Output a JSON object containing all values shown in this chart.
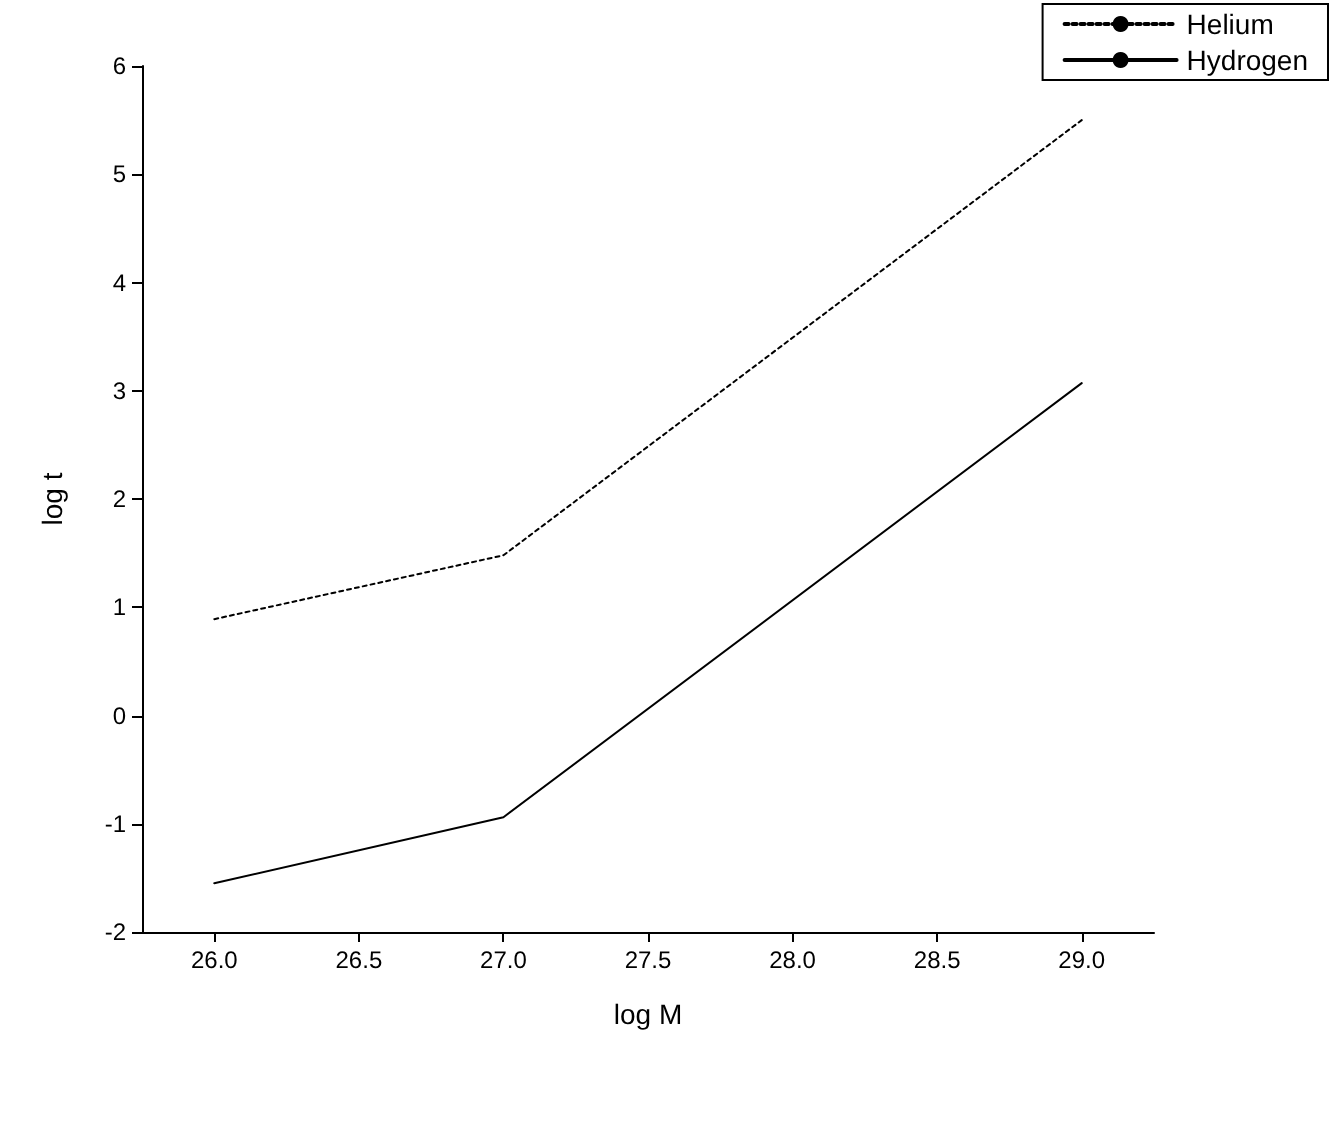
{
  "chart_data": {
    "type": "line",
    "xlabel": "log M",
    "ylabel": "log t",
    "x": [
      26,
      27,
      29
    ],
    "series": [
      {
        "name": "Helium",
        "color": "#000000",
        "line_style": "dotted",
        "values": [
          0.89,
          1.48,
          5.5
        ]
      },
      {
        "name": "Hydrogen",
        "color": "#000000",
        "line_style": "solid",
        "values": [
          -1.55,
          -0.94,
          3.07
        ]
      }
    ],
    "xlim": [
      25.75,
      29.25
    ],
    "xticks": [
      {
        "value": 26,
        "label": "26.0"
      },
      {
        "value": 26.5,
        "label": "26.5"
      },
      {
        "value": 27,
        "label": "27.0"
      },
      {
        "value": 27.5,
        "label": "27.5"
      },
      {
        "value": 28,
        "label": "28.0"
      },
      {
        "value": 28.5,
        "label": "28.5"
      },
      {
        "value": 29,
        "label": "29.0"
      }
    ],
    "ylim": [
      -2,
      6
    ],
    "yticks": [
      -2,
      -1,
      0,
      1,
      2,
      3,
      4,
      5,
      6
    ],
    "grid": false,
    "legend": "top right",
    "marker": "none"
  }
}
